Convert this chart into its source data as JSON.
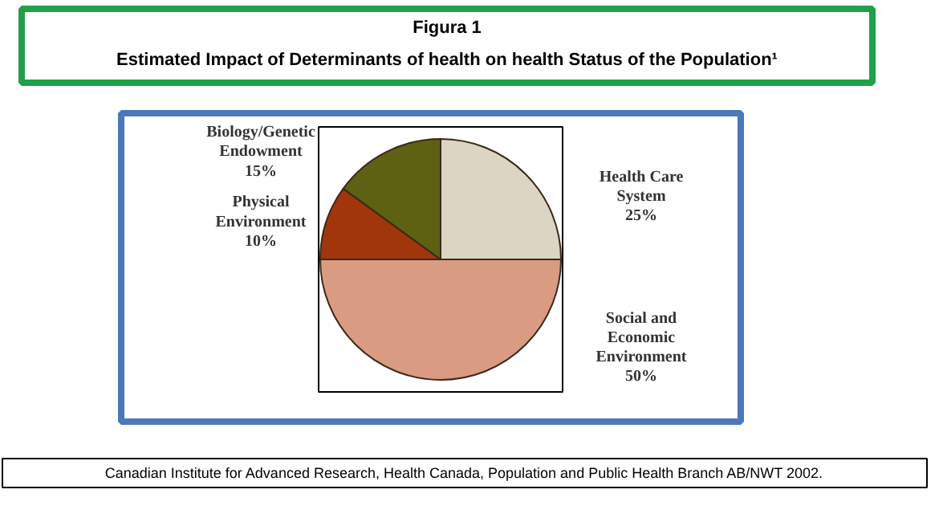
{
  "chart_data": {
    "type": "pie",
    "title": "Figura 1",
    "subtitle": "Estimated Impact of Determinants of health on health Status of the Population¹",
    "categories": [
      "Health Care\nSystem",
      "Social and\nEconomic\nEnvironment",
      "Physical\nEnvironment",
      "Biology/Genetic\nEndowment"
    ],
    "values": [
      25,
      50,
      10,
      15
    ],
    "value_labels": [
      "25%",
      "50%",
      "10%",
      "15%"
    ],
    "colors": [
      "#ddd5c3",
      "#d99b82",
      "#a1360c",
      "#5e6012"
    ],
    "annotations": [
      "Canadian Institute for Advanced Research, Health Canada, Population and Public Health Branch AB/NWT 2002."
    ]
  }
}
